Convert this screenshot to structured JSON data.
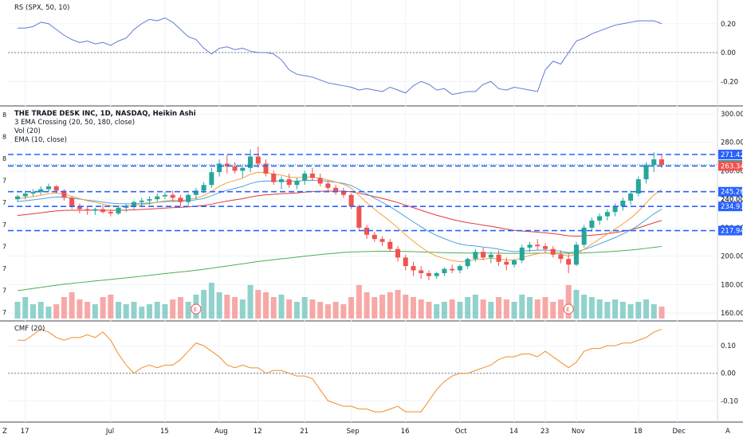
{
  "rs_pane": {
    "legend": "RS (SPX, 50, 10)",
    "ticks": [
      "0.20",
      "0.00",
      "-0.20"
    ],
    "tick_values": [
      0.2,
      0.0,
      -0.2
    ]
  },
  "main_pane": {
    "legend_lines": [
      "THE TRADE DESK INC, 1D, NASDAQ, Heikin Ashi",
      "3 EMA Crossing (20, 50, 180, close)",
      "Vol (20)",
      "EMA (10, close)"
    ],
    "left_digits": [
      "8",
      "8",
      "8",
      "7",
      "7",
      "7",
      "7",
      "7",
      "7",
      "7"
    ],
    "ticks": [
      "300.00",
      "280.00",
      "260.00",
      "240.00",
      "220.00",
      "200.00",
      "180.00",
      "160.00"
    ],
    "tick_values": [
      300,
      280,
      260,
      240,
      220,
      200,
      180,
      160
    ],
    "levels": [
      {
        "value": 271.42,
        "label": "271.42",
        "color": "#2962ff",
        "label_bg": "#2962ff"
      },
      {
        "value": 264.26,
        "label": "264.26",
        "color": "#26a69a",
        "label_bg": "#26a69a",
        "dotted": true
      },
      {
        "value": 263.34,
        "label": "263.34",
        "color": "#2962ff",
        "label_bg": "#ef5350"
      },
      {
        "value": 245.26,
        "label": "245.26",
        "color": "#2962ff",
        "label_bg": "#2962ff"
      },
      {
        "value": 240.0,
        "label": "240.00",
        "plain": true
      },
      {
        "value": 234.93,
        "label": "234.93",
        "color": "#2962ff",
        "label_bg": "#2962ff"
      },
      {
        "value": 217.94,
        "label": "217.94",
        "color": "#2962ff",
        "label_bg": "#2962ff"
      }
    ],
    "earnings_marker": "E"
  },
  "cmf_pane": {
    "legend": "CMF (20)",
    "ticks": [
      "0.10",
      "0.00",
      "-0.10"
    ],
    "tick_values": [
      0.1,
      0.0,
      -0.1
    ]
  },
  "x_axis": {
    "labels": [
      "17",
      "Jul",
      "15",
      "Aug",
      "12",
      "21",
      "Sep",
      "16",
      "Oct",
      "14",
      "23",
      "Nov",
      "18",
      "Dec"
    ],
    "z_label": "Z",
    "a_label": "A"
  },
  "colors": {
    "up": "#26a69a",
    "down": "#ef5350",
    "ema10": "#f7a13a",
    "ema20": "#4ba3e3",
    "ema50": "#e53935",
    "ema180": "#4caf50",
    "rs_line": "#5b7bd6",
    "cmf_line": "#f28c28"
  },
  "chart_data": {
    "type": "candlestick",
    "candles": [
      [
        240,
        243,
        238,
        242
      ],
      [
        242,
        246,
        240,
        244
      ],
      [
        244,
        247,
        242,
        245
      ],
      [
        245,
        249,
        243,
        247
      ],
      [
        247,
        251,
        245,
        249
      ],
      [
        249,
        250,
        244,
        246
      ],
      [
        246,
        247,
        239,
        241
      ],
      [
        241,
        242,
        233,
        235
      ],
      [
        235,
        237,
        230,
        233
      ],
      [
        233,
        235,
        229,
        232
      ],
      [
        232,
        234,
        229,
        233
      ],
      [
        233,
        236,
        230,
        231
      ],
      [
        231,
        233,
        228,
        230
      ],
      [
        230,
        235,
        229,
        234
      ],
      [
        234,
        237,
        231,
        235
      ],
      [
        235,
        239,
        233,
        238
      ],
      [
        238,
        241,
        235,
        239
      ],
      [
        239,
        242,
        236,
        240
      ],
      [
        240,
        244,
        238,
        242
      ],
      [
        242,
        245,
        240,
        243
      ],
      [
        243,
        246,
        238,
        241
      ],
      [
        241,
        243,
        235,
        238
      ],
      [
        238,
        244,
        236,
        243
      ],
      [
        243,
        248,
        240,
        246
      ],
      [
        246,
        252,
        244,
        250
      ],
      [
        250,
        262,
        248,
        259
      ],
      [
        259,
        268,
        256,
        265
      ],
      [
        265,
        271,
        258,
        263
      ],
      [
        263,
        266,
        258,
        260
      ],
      [
        260,
        264,
        255,
        262
      ],
      [
        262,
        275,
        259,
        270
      ],
      [
        270,
        277,
        262,
        265
      ],
      [
        265,
        268,
        256,
        258
      ],
      [
        258,
        260,
        250,
        252
      ],
      [
        252,
        256,
        247,
        254
      ],
      [
        254,
        258,
        248,
        250
      ],
      [
        250,
        255,
        247,
        253
      ],
      [
        253,
        260,
        250,
        258
      ],
      [
        258,
        262,
        253,
        255
      ],
      [
        255,
        258,
        249,
        251
      ],
      [
        251,
        253,
        246,
        248
      ],
      [
        248,
        250,
        243,
        246
      ],
      [
        246,
        248,
        241,
        243
      ],
      [
        243,
        244,
        233,
        235
      ],
      [
        235,
        236,
        218,
        220
      ],
      [
        220,
        222,
        212,
        215
      ],
      [
        215,
        217,
        210,
        212
      ],
      [
        212,
        214,
        207,
        210
      ],
      [
        210,
        212,
        203,
        205
      ],
      [
        205,
        207,
        196,
        199
      ],
      [
        199,
        201,
        190,
        193
      ],
      [
        193,
        196,
        186,
        190
      ],
      [
        190,
        193,
        184,
        188
      ],
      [
        188,
        190,
        183,
        186
      ],
      [
        186,
        189,
        184,
        188
      ],
      [
        188,
        192,
        186,
        191
      ],
      [
        191,
        194,
        188,
        190
      ],
      [
        190,
        194,
        188,
        193
      ],
      [
        193,
        199,
        191,
        198
      ],
      [
        198,
        205,
        196,
        203
      ],
      [
        203,
        206,
        197,
        199
      ],
      [
        199,
        203,
        195,
        201
      ],
      [
        201,
        204,
        193,
        196
      ],
      [
        196,
        199,
        190,
        194
      ],
      [
        194,
        198,
        192,
        197
      ],
      [
        197,
        208,
        195,
        206
      ],
      [
        206,
        210,
        203,
        208
      ],
      [
        208,
        212,
        204,
        207
      ],
      [
        207,
        209,
        202,
        205
      ],
      [
        205,
        207,
        199,
        201
      ],
      [
        201,
        204,
        195,
        198
      ],
      [
        198,
        202,
        188,
        194
      ],
      [
        194,
        210,
        193,
        208
      ],
      [
        208,
        222,
        206,
        220
      ],
      [
        220,
        227,
        217,
        225
      ],
      [
        225,
        230,
        222,
        228
      ],
      [
        228,
        233,
        225,
        231
      ],
      [
        231,
        237,
        228,
        235
      ],
      [
        235,
        241,
        232,
        239
      ],
      [
        239,
        246,
        236,
        244
      ],
      [
        244,
        256,
        242,
        254
      ],
      [
        254,
        266,
        251,
        264
      ],
      [
        264,
        273,
        259,
        268
      ],
      [
        268,
        271,
        262,
        264
      ]
    ],
    "volume": [
      0.35,
      0.45,
      0.3,
      0.35,
      0.25,
      0.3,
      0.45,
      0.55,
      0.4,
      0.35,
      0.3,
      0.45,
      0.5,
      0.35,
      0.3,
      0.35,
      0.25,
      0.3,
      0.35,
      0.3,
      0.4,
      0.45,
      0.35,
      0.5,
      0.6,
      0.75,
      0.55,
      0.5,
      0.45,
      0.4,
      0.7,
      0.6,
      0.55,
      0.45,
      0.5,
      0.4,
      0.35,
      0.45,
      0.4,
      0.35,
      0.3,
      0.35,
      0.3,
      0.45,
      0.7,
      0.55,
      0.45,
      0.5,
      0.55,
      0.6,
      0.5,
      0.45,
      0.4,
      0.35,
      0.3,
      0.35,
      0.4,
      0.35,
      0.45,
      0.5,
      0.4,
      0.35,
      0.45,
      0.4,
      0.35,
      0.5,
      0.45,
      0.4,
      0.45,
      0.35,
      0.4,
      0.7,
      0.6,
      0.5,
      0.45,
      0.4,
      0.35,
      0.4,
      0.35,
      0.3,
      0.35,
      0.4,
      0.3,
      0.25
    ],
    "rs": [
      0.17,
      0.17,
      0.18,
      0.21,
      0.2,
      0.16,
      0.12,
      0.09,
      0.07,
      0.08,
      0.06,
      0.07,
      0.05,
      0.08,
      0.1,
      0.16,
      0.2,
      0.23,
      0.22,
      0.24,
      0.21,
      0.16,
      0.11,
      0.09,
      0.03,
      -0.01,
      0.03,
      0.04,
      0.02,
      0.03,
      0.01,
      0.0,
      0.0,
      -0.01,
      -0.05,
      -0.12,
      -0.15,
      -0.16,
      -0.17,
      -0.19,
      -0.21,
      -0.22,
      -0.23,
      -0.24,
      -0.26,
      -0.25,
      -0.26,
      -0.27,
      -0.24,
      -0.26,
      -0.28,
      -0.23,
      -0.2,
      -0.22,
      -0.26,
      -0.25,
      -0.29,
      -0.28,
      -0.27,
      -0.27,
      -0.22,
      -0.2,
      -0.25,
      -0.26,
      -0.24,
      -0.25,
      -0.26,
      -0.27,
      -0.12,
      -0.06,
      -0.08,
      0.0,
      0.08,
      0.1,
      0.13,
      0.15,
      0.17,
      0.19,
      0.2,
      0.21,
      0.22,
      0.22,
      0.22,
      0.2
    ],
    "cmf": [
      0.12,
      0.12,
      0.14,
      0.16,
      0.15,
      0.13,
      0.12,
      0.13,
      0.13,
      0.14,
      0.13,
      0.15,
      0.12,
      0.07,
      0.03,
      0.0,
      0.02,
      0.03,
      0.02,
      0.03,
      0.03,
      0.05,
      0.08,
      0.11,
      0.1,
      0.08,
      0.06,
      0.03,
      0.02,
      0.03,
      0.02,
      0.02,
      0.0,
      0.01,
      0.01,
      0.0,
      -0.01,
      -0.01,
      -0.02,
      -0.06,
      -0.1,
      -0.11,
      -0.12,
      -0.12,
      -0.13,
      -0.13,
      -0.14,
      -0.14,
      -0.13,
      -0.12,
      -0.14,
      -0.14,
      -0.14,
      -0.1,
      -0.06,
      -0.03,
      -0.01,
      0.0,
      0.0,
      0.01,
      0.02,
      0.03,
      0.05,
      0.06,
      0.06,
      0.07,
      0.07,
      0.06,
      0.08,
      0.06,
      0.04,
      0.02,
      0.04,
      0.08,
      0.09,
      0.09,
      0.1,
      0.1,
      0.11,
      0.11,
      0.12,
      0.13,
      0.15,
      0.16
    ],
    "earnings_at": [
      23,
      71
    ],
    "x_tick_indices": [
      1,
      12,
      19,
      26,
      31,
      37,
      43,
      50,
      57,
      64,
      68,
      72,
      80,
      85
    ],
    "rs_range": [
      -0.32,
      0.32
    ],
    "price_range": [
      155,
      305
    ],
    "cmf_range": [
      -0.16,
      0.17
    ]
  }
}
